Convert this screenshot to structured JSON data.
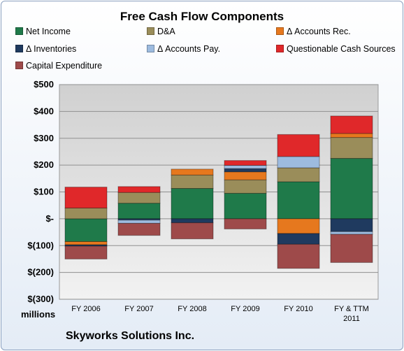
{
  "chart_data": {
    "type": "bar",
    "stacked": true,
    "title": "Free Cash Flow Components",
    "categories": [
      "FY 2006",
      "FY 2007",
      "FY 2008",
      "FY 2009",
      "FY 2010",
      "FY & TTM 2011"
    ],
    "y_tick_labels": [
      "$500",
      "$400",
      "$300",
      "$200",
      "$100",
      "$-",
      "$(100)",
      "$(200)",
      "$(300)"
    ],
    "y_tick_values": [
      500,
      400,
      300,
      200,
      100,
      0,
      -100,
      -200,
      -300
    ],
    "ylim": [
      -300,
      500
    ],
    "units_label": "millions",
    "grid": true,
    "legend_position": "top",
    "series": [
      {
        "name": "Net Income",
        "color": "#1f7a4a",
        "values": [
          -85,
          58,
          113,
          95,
          138,
          225
        ]
      },
      {
        "name": "D&A",
        "color": "#9a8d5a",
        "values": [
          40,
          40,
          50,
          50,
          52,
          78
        ]
      },
      {
        "name": "Δ Accounts Rec.",
        "color": "#e6781e",
        "values": [
          -12,
          0,
          22,
          30,
          -55,
          15
        ]
      },
      {
        "name": "Δ Inventories",
        "color": "#1f3a5f",
        "values": [
          -5,
          -5,
          -15,
          12,
          -40,
          -48
        ]
      },
      {
        "name": "Δ Accounts Pay.",
        "color": "#9dbbdf",
        "values": [
          0,
          -12,
          0,
          12,
          42,
          -10
        ]
      },
      {
        "name": "Questionable Cash Sources",
        "color": "#e0282a",
        "values": [
          78,
          22,
          0,
          18,
          82,
          65
        ]
      },
      {
        "name": "Capital Expenditure",
        "color": "#9e4a4a",
        "values": [
          -48,
          -45,
          -60,
          -38,
          -90,
          -105
        ]
      }
    ]
  },
  "footer": {
    "company": "Skyworks Solutions Inc."
  }
}
